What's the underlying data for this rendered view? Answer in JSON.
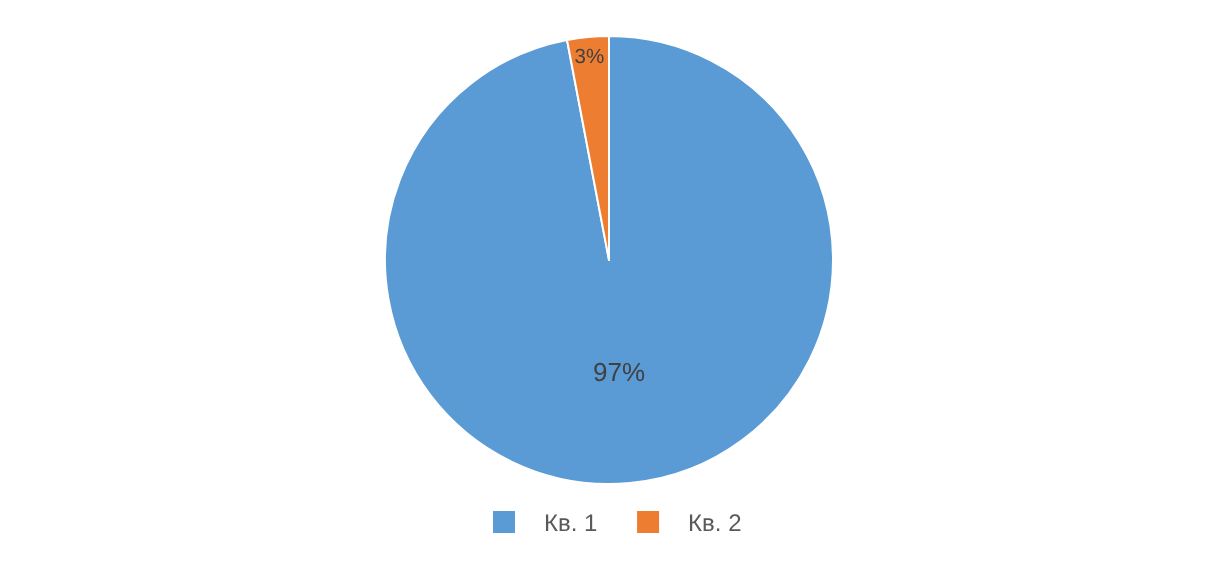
{
  "chart_data": {
    "type": "pie",
    "categories": [
      "Кв. 1",
      "Кв. 2"
    ],
    "values": [
      97,
      3
    ],
    "value_labels": [
      "97%",
      "3%"
    ],
    "colors": [
      "#5b9bd5",
      "#ed7d31"
    ],
    "legend": "bottom"
  }
}
